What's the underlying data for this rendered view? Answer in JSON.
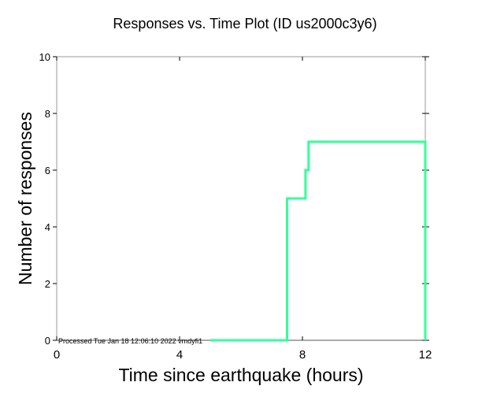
{
  "chart_data": {
    "type": "line",
    "title": "Responses vs. Time Plot (ID us2000c3y6)",
    "xlabel": "Time since earthquake (hours)",
    "ylabel": "Number of responses",
    "xlim": [
      0,
      12
    ],
    "ylim": [
      0,
      10
    ],
    "xticks": [
      0,
      4,
      8,
      12
    ],
    "yticks": [
      0,
      2,
      4,
      6,
      8,
      10
    ],
    "grid": false,
    "series": [
      {
        "name": "responses",
        "color": "#33ff99",
        "step": true,
        "x": [
          5.0,
          7.5,
          7.5,
          8.1,
          8.1,
          8.2,
          8.2,
          12.0,
          12.0
        ],
        "y": [
          0,
          0,
          5,
          5,
          6,
          6,
          7,
          7,
          0
        ]
      }
    ],
    "annotation": "Processed Tue Jan 18 12:06:10 2022 vmdyfi1"
  }
}
